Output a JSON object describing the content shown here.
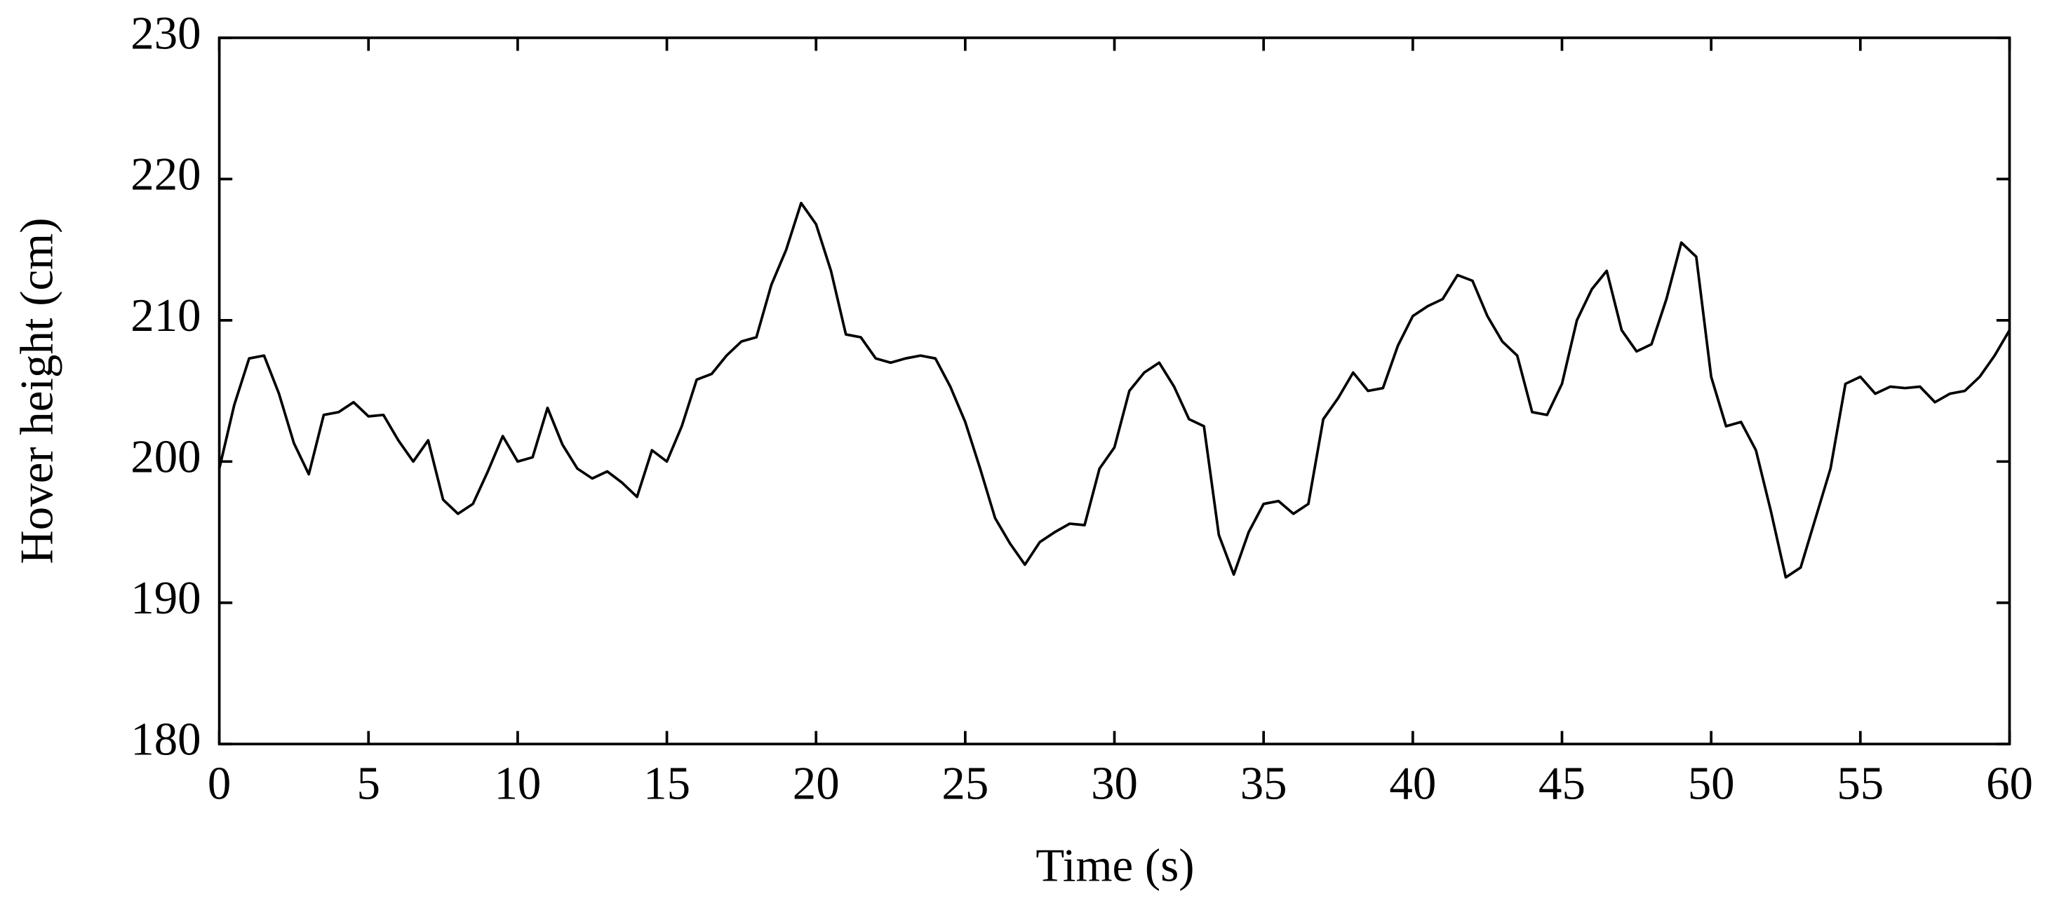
{
  "chart_data": {
    "type": "line",
    "x_label": "Time (s)",
    "y_label": "Hover height (cm)",
    "xlim": [
      0,
      60
    ],
    "xticks": [
      0,
      5,
      10,
      15,
      20,
      25,
      30,
      35,
      40,
      45,
      50,
      55,
      60
    ],
    "ylim": [
      180,
      230
    ],
    "yticks": [
      180,
      190,
      200,
      210,
      220,
      230
    ],
    "grid": false,
    "x": [
      0,
      0.5,
      1,
      1.5,
      2,
      2.5,
      3,
      3.5,
      4,
      4.5,
      5,
      5.5,
      6,
      6.5,
      7,
      7.5,
      8,
      8.5,
      9,
      9.5,
      10,
      10.5,
      11,
      11.5,
      12,
      12.5,
      13,
      13.5,
      14,
      14.5,
      15,
      15.5,
      16,
      16.5,
      17,
      17.5,
      18,
      18.5,
      19,
      19.5,
      20,
      20.5,
      21,
      21.5,
      22,
      22.5,
      23,
      23.5,
      24,
      24.5,
      25,
      25.5,
      26,
      26.5,
      27,
      27.5,
      28,
      28.5,
      29,
      29.5,
      30,
      30.5,
      31,
      31.5,
      32,
      32.5,
      33,
      33.5,
      34,
      34.5,
      35,
      35.5,
      36,
      36.5,
      37,
      37.5,
      38,
      38.5,
      39,
      39.5,
      40,
      40.5,
      41,
      41.5,
      42,
      42.5,
      43,
      43.5,
      44,
      44.5,
      45,
      45.5,
      46,
      46.5,
      47,
      47.5,
      48,
      48.5,
      49,
      49.5,
      50,
      50.5,
      51,
      51.5,
      52,
      52.5,
      53,
      53.5,
      54,
      54.5,
      55,
      55.5,
      56,
      56.5,
      57,
      57.5,
      58,
      58.5,
      59,
      59.5,
      60
    ],
    "series": [
      {
        "color": "#000000",
        "values": [
          199.5,
          204,
          207.3,
          207.5,
          204.8,
          201.3,
          199.1,
          203.3,
          203.5,
          204.2,
          203.2,
          203.3,
          201.5,
          200,
          201.5,
          197.3,
          196.3,
          197,
          199.3,
          201.8,
          200,
          200.3,
          203.8,
          201.2,
          199.5,
          198.8,
          199.3,
          198.5,
          197.5,
          200.8,
          200,
          202.5,
          205.8,
          206.2,
          207.5,
          208.5,
          208.8,
          212.5,
          215,
          218.3,
          216.8,
          213.5,
          209,
          208.8,
          207.3,
          207,
          207.3,
          207.5,
          207.3,
          205.3,
          202.8,
          199.5,
          196,
          194.2,
          192.7,
          194.3,
          195,
          195.6,
          195.5,
          199.5,
          201,
          205,
          206.3,
          207,
          205.3,
          203,
          202.5,
          194.8,
          192,
          195,
          197,
          197.2,
          196.3,
          197,
          203,
          204.5,
          206.3,
          205,
          205.2,
          208.2,
          210.3,
          211,
          211.5,
          213.2,
          212.8,
          210.3,
          208.5,
          207.5,
          203.5,
          203.3,
          205.5,
          210,
          212.2,
          213.5,
          209.3,
          207.8,
          208.3,
          211.5,
          215.5,
          214.5,
          206,
          202.5,
          202.8,
          200.8,
          196.5,
          191.8,
          192.5,
          196,
          199.5,
          205.5,
          206,
          204.8,
          205.3,
          205.2,
          205.3,
          204.2,
          204.8,
          205,
          206,
          207.5,
          209.3
        ]
      }
    ]
  }
}
